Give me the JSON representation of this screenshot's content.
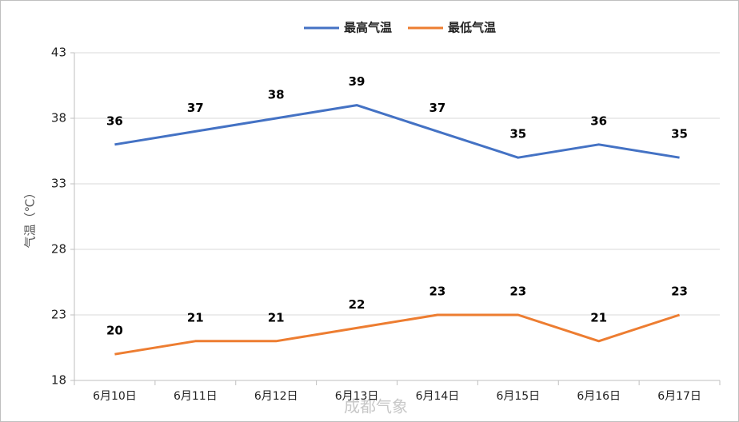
{
  "chart_data": {
    "type": "line",
    "y_label": "气温（℃）",
    "watermark": "成都气象",
    "categories": [
      "6月10日",
      "6月11日",
      "6月12日",
      "6月13日",
      "6月14日",
      "6月15日",
      "6月16日",
      "6月17日"
    ],
    "series": [
      {
        "name": "最高气温",
        "color": "#4472c4",
        "values": [
          36,
          37,
          38,
          39,
          37,
          35,
          36,
          35
        ]
      },
      {
        "name": "最低气温",
        "color": "#ed7d31",
        "values": [
          20,
          21,
          21,
          22,
          23,
          23,
          21,
          23
        ]
      }
    ],
    "ylim": [
      18,
      43
    ],
    "yticks": [
      18,
      23,
      28,
      33,
      38,
      43
    ],
    "grid": true,
    "legend": "top"
  }
}
